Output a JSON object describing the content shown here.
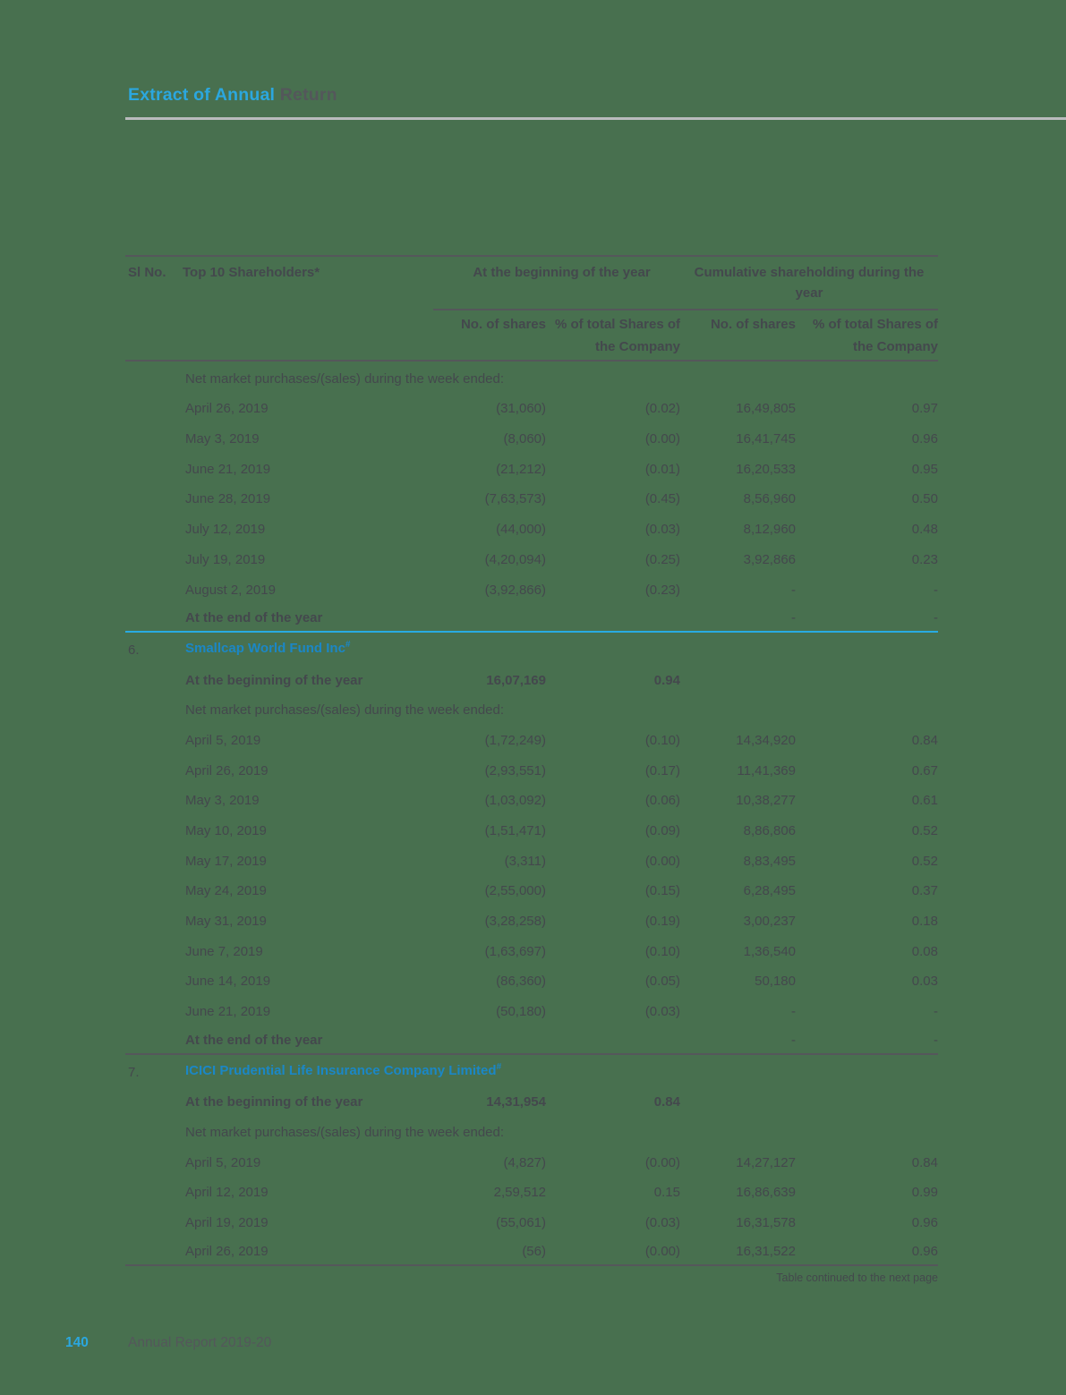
{
  "colors": {
    "bg": "#48704F",
    "ink": "#44484D",
    "ink_soft": "#54575B",
    "blue_bright": "#2BA7DF",
    "blue_section": "#1B87C6",
    "rule_light": "#B9BBBD",
    "rule_dark": "#55575B",
    "rule_blue": "#29ABE2"
  },
  "header": {
    "title_blue": "Extract of Annual",
    "title_dark": " Return"
  },
  "table": {
    "columns": {
      "sl_no": "Sl No.",
      "shareholders": "Top 10 Shareholders*",
      "group_beginning": "At the beginning of the year",
      "group_cumulative": "Cumulative shareholding during the year",
      "no_of_shares": "No. of shares",
      "pct_of_total": "% of total Shares of the Company"
    },
    "rows": [
      {
        "type": "note",
        "label": "Net market purchases/(sales) during the week ended:"
      },
      {
        "type": "data",
        "label": "April 26, 2019",
        "c1": "(31,060)",
        "c2": "(0.02)",
        "c3": "16,49,805",
        "c4": "0.97"
      },
      {
        "type": "data",
        "label": "May 3, 2019",
        "c1": "(8,060)",
        "c2": "(0.00)",
        "c3": "16,41,745",
        "c4": "0.96"
      },
      {
        "type": "data",
        "label": "June 21, 2019",
        "c1": "(21,212)",
        "c2": "(0.01)",
        "c3": "16,20,533",
        "c4": "0.95"
      },
      {
        "type": "data",
        "label": "June 28, 2019",
        "c1": "(7,63,573)",
        "c2": "(0.45)",
        "c3": "8,56,960",
        "c4": "0.50"
      },
      {
        "type": "data",
        "label": "July 12, 2019",
        "c1": "(44,000)",
        "c2": "(0.03)",
        "c3": "8,12,960",
        "c4": "0.48"
      },
      {
        "type": "data",
        "label": "July 19, 2019",
        "c1": "(4,20,094)",
        "c2": "(0.25)",
        "c3": "3,92,866",
        "c4": "0.23"
      },
      {
        "type": "data",
        "label": "August 2, 2019",
        "c1": "(3,92,866)",
        "c2": "(0.23)",
        "c3": "-",
        "c4": "-"
      },
      {
        "type": "end",
        "label": "At the end of the year",
        "c3": "-",
        "c4": "-",
        "divider": "blue"
      },
      {
        "type": "section",
        "sl": "6.",
        "title": "Smallcap World Fund Inc",
        "sup": "#"
      },
      {
        "type": "begin",
        "label": "At the beginning of the year",
        "c1": "16,07,169",
        "c2": "0.94"
      },
      {
        "type": "note",
        "label": "Net market purchases/(sales) during the week ended:"
      },
      {
        "type": "data",
        "label": "April 5, 2019",
        "c1": "(1,72,249)",
        "c2": "(0.10)",
        "c3": "14,34,920",
        "c4": "0.84"
      },
      {
        "type": "data",
        "label": "April 26, 2019",
        "c1": "(2,93,551)",
        "c2": "(0.17)",
        "c3": "11,41,369",
        "c4": "0.67"
      },
      {
        "type": "data",
        "label": "May 3, 2019",
        "c1": "(1,03,092)",
        "c2": "(0.06)",
        "c3": "10,38,277",
        "c4": "0.61"
      },
      {
        "type": "data",
        "label": "May 10, 2019",
        "c1": "(1,51,471)",
        "c2": "(0.09)",
        "c3": "8,86,806",
        "c4": "0.52"
      },
      {
        "type": "data",
        "label": "May 17, 2019",
        "c1": "(3,311)",
        "c2": "(0.00)",
        "c3": "8,83,495",
        "c4": "0.52"
      },
      {
        "type": "data",
        "label": "May 24, 2019",
        "c1": "(2,55,000)",
        "c2": "(0.15)",
        "c3": "6,28,495",
        "c4": "0.37"
      },
      {
        "type": "data",
        "label": "May 31, 2019",
        "c1": "(3,28,258)",
        "c2": "(0.19)",
        "c3": "3,00,237",
        "c4": "0.18"
      },
      {
        "type": "data",
        "label": "June 7, 2019",
        "c1": "(1,63,697)",
        "c2": "(0.10)",
        "c3": "1,36,540",
        "c4": "0.08"
      },
      {
        "type": "data",
        "label": "June 14, 2019",
        "c1": "(86,360)",
        "c2": "(0.05)",
        "c3": "50,180",
        "c4": "0.03"
      },
      {
        "type": "data",
        "label": "June 21, 2019",
        "c1": "(50,180)",
        "c2": "(0.03)",
        "c3": "-",
        "c4": "-"
      },
      {
        "type": "end",
        "label": "At the end of the year",
        "c3": "-",
        "c4": "-",
        "divider": "dark"
      },
      {
        "type": "section",
        "sl": "7.",
        "title": "ICICI Prudential Life Insurance Company Limited",
        "sup": "#"
      },
      {
        "type": "begin",
        "label": "At the beginning of the year",
        "c1": "14,31,954",
        "c2": "0.84"
      },
      {
        "type": "note",
        "label": "Net market purchases/(sales) during the week ended:"
      },
      {
        "type": "data",
        "label": "April 5, 2019",
        "c1": "(4,827)",
        "c2": "(0.00)",
        "c3": "14,27,127",
        "c4": "0.84"
      },
      {
        "type": "data",
        "label": "April 12, 2019",
        "c1": "2,59,512",
        "c2": "0.15",
        "c3": "16,86,639",
        "c4": "0.99"
      },
      {
        "type": "data",
        "label": "April 19, 2019",
        "c1": "(55,061)",
        "c2": "(0.03)",
        "c3": "16,31,578",
        "c4": "0.96"
      },
      {
        "type": "data",
        "label": "April 26, 2019",
        "c1": "(56)",
        "c2": "(0.00)",
        "c3": "16,31,522",
        "c4": "0.96",
        "divider": "dark"
      }
    ]
  },
  "continuation_note": "Table continued to the next page",
  "footer": {
    "page_number": "140",
    "report_label": "Annual Report 2019-20"
  }
}
